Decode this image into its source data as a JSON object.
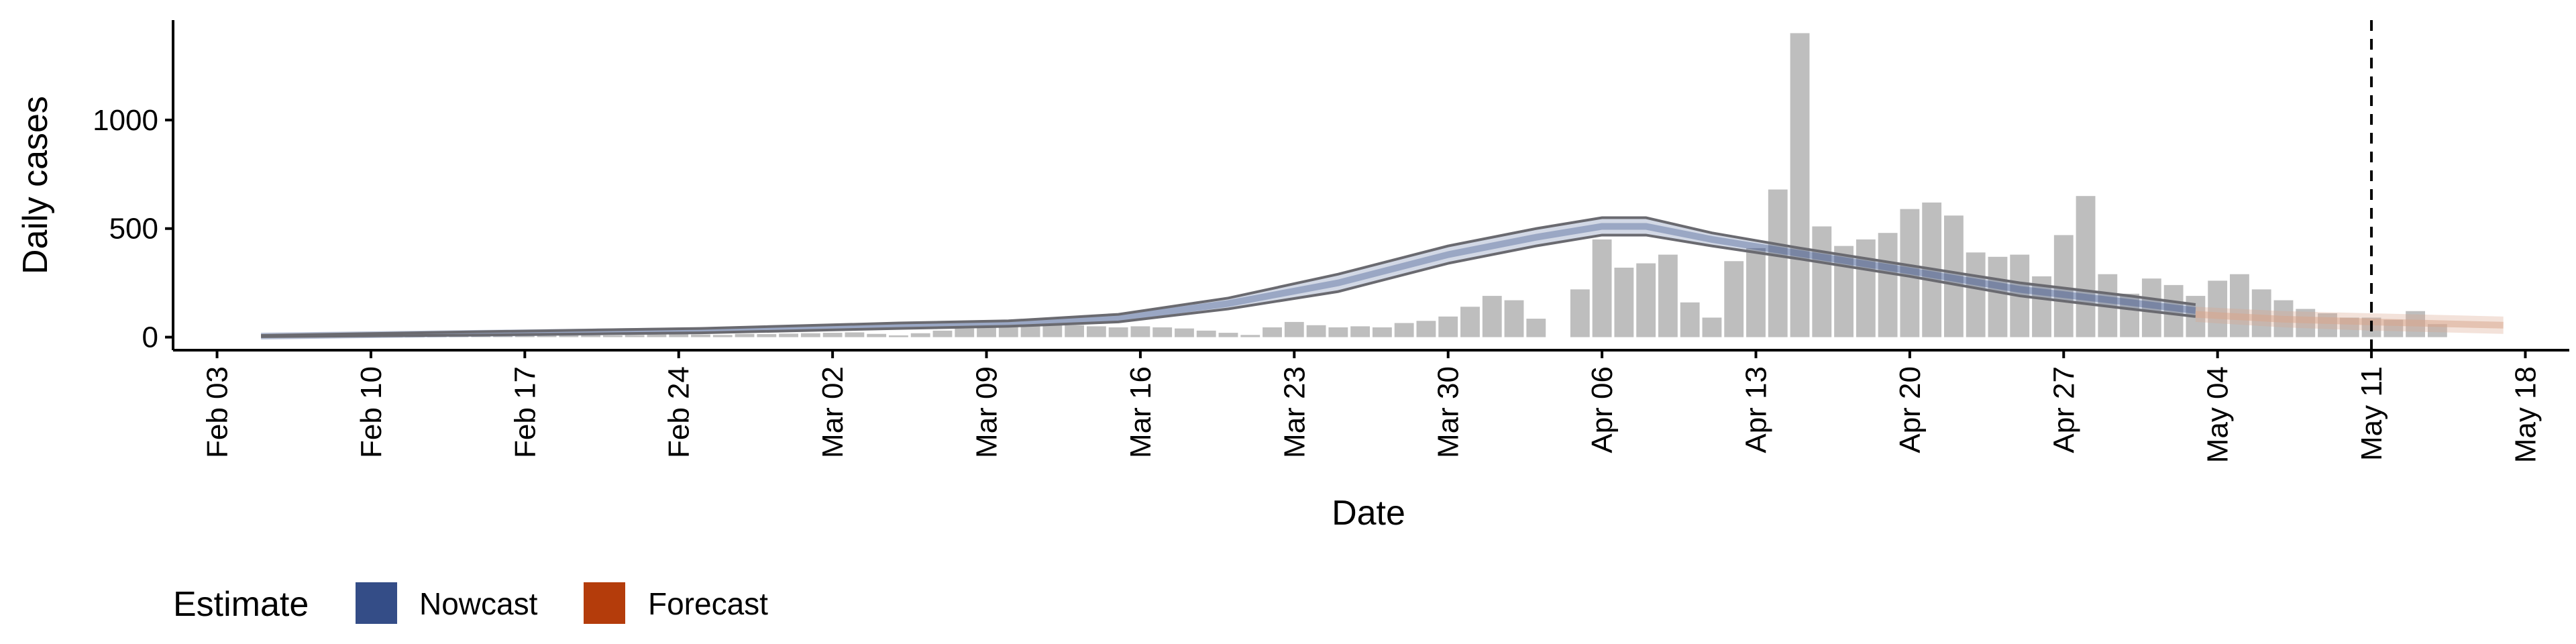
{
  "chart_data": {
    "type": "bar",
    "xlabel": "Date",
    "ylabel": "Daily cases",
    "x_range": [
      "2020-02-01",
      "2020-05-20"
    ],
    "ylim": [
      -60,
      1460
    ],
    "x_ticks": [
      {
        "date": "2020-02-03",
        "label": "Feb 03"
      },
      {
        "date": "2020-02-10",
        "label": "Feb 10"
      },
      {
        "date": "2020-02-17",
        "label": "Feb 17"
      },
      {
        "date": "2020-02-24",
        "label": "Feb 24"
      },
      {
        "date": "2020-03-02",
        "label": "Mar 02"
      },
      {
        "date": "2020-03-09",
        "label": "Mar 09"
      },
      {
        "date": "2020-03-16",
        "label": "Mar 16"
      },
      {
        "date": "2020-03-23",
        "label": "Mar 23"
      },
      {
        "date": "2020-03-30",
        "label": "Mar 30"
      },
      {
        "date": "2020-04-06",
        "label": "Apr 06"
      },
      {
        "date": "2020-04-13",
        "label": "Apr 13"
      },
      {
        "date": "2020-04-20",
        "label": "Apr 20"
      },
      {
        "date": "2020-04-27",
        "label": "Apr 27"
      },
      {
        "date": "2020-05-04",
        "label": "May 04"
      },
      {
        "date": "2020-05-11",
        "label": "May 11"
      },
      {
        "date": "2020-05-18",
        "label": "May 18"
      }
    ],
    "y_ticks": [
      {
        "value": 0,
        "label": "0"
      },
      {
        "value": 500,
        "label": "500"
      },
      {
        "value": 1000,
        "label": "1000"
      }
    ],
    "grid": false,
    "vline_date": "2020-05-11",
    "bars_start_date": "2020-02-05",
    "bar_values": [
      0,
      1,
      2,
      2,
      3,
      2,
      4,
      3,
      4,
      5,
      5,
      6,
      6,
      7,
      8,
      9,
      8,
      10,
      12,
      14,
      12,
      10,
      15,
      14,
      16,
      18,
      20,
      22,
      15,
      8,
      18,
      30,
      40,
      45,
      50,
      55,
      60,
      55,
      50,
      45,
      50,
      45,
      40,
      30,
      20,
      10,
      45,
      70,
      55,
      45,
      50,
      45,
      65,
      75,
      95,
      140,
      190,
      170,
      85,
      0,
      220,
      450,
      320,
      340,
      380,
      160,
      90,
      350,
      410,
      680,
      1400,
      510,
      420,
      450,
      480,
      590,
      620,
      560,
      390,
      370,
      380,
      280,
      470,
      650,
      290,
      200,
      270,
      240,
      190,
      260,
      290,
      220,
      170,
      130,
      110,
      90,
      90,
      80,
      120,
      60
    ],
    "legend": {
      "title": "Estimate",
      "position": "bottom-left",
      "entries": [
        {
          "label": "Nowcast",
          "color": "#344d87"
        },
        {
          "label": "Forecast",
          "color": "#b43c0b"
        }
      ]
    },
    "nowcast": {
      "color": "#344d87",
      "dates": [
        "2020-02-05",
        "2020-02-15",
        "2020-02-25",
        "2020-03-05",
        "2020-03-10",
        "2020-03-15",
        "2020-03-20",
        "2020-03-25",
        "2020-03-30",
        "2020-04-03",
        "2020-04-06",
        "2020-04-08",
        "2020-04-11",
        "2020-04-15",
        "2020-04-20",
        "2020-04-25",
        "2020-04-30",
        "2020-05-03"
      ],
      "lower": [
        2,
        10,
        20,
        40,
        50,
        70,
        130,
        210,
        340,
        420,
        470,
        470,
        420,
        360,
        280,
        190,
        130,
        95
      ],
      "upper": [
        8,
        25,
        40,
        65,
        75,
        105,
        180,
        290,
        420,
        500,
        550,
        550,
        480,
        410,
        330,
        250,
        190,
        150
      ]
    },
    "forecast": {
      "color": "#d9a58c",
      "dates": [
        "2020-05-03",
        "2020-05-07",
        "2020-05-11",
        "2020-05-17"
      ],
      "lower": [
        70,
        45,
        30,
        15
      ],
      "upper": [
        140,
        120,
        110,
        95
      ]
    }
  }
}
